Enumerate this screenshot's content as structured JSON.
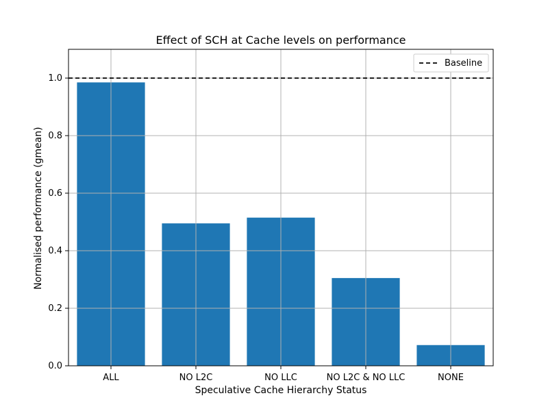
{
  "colors": {
    "bar": "#1f77b4",
    "grid": "#b0b0b0",
    "axis": "#000000",
    "baseline": "#000000",
    "background": "#ffffff"
  },
  "chart_data": {
    "type": "bar",
    "title": "Effect of SCH at Cache levels on performance",
    "xlabel": "Speculative Cache Hierarchy Status",
    "ylabel": "Normalised performance (gmean)",
    "categories": [
      "ALL",
      "NO L2C",
      "NO LLC",
      "NO L2C & NO LLC",
      "NONE"
    ],
    "values": [
      0.985,
      0.495,
      0.515,
      0.305,
      0.072
    ],
    "ylim": [
      0,
      1.1
    ],
    "yticks": [
      0.0,
      0.2,
      0.4,
      0.6,
      0.8,
      1.0
    ],
    "ytick_labels": [
      "0.0",
      "0.2",
      "0.4",
      "0.6",
      "0.8",
      "1.0"
    ],
    "grid": true,
    "baseline": {
      "value": 1.0,
      "label": "Baseline",
      "style": "dashed"
    },
    "legend": {
      "position": "top-right",
      "entries": [
        "Baseline"
      ]
    }
  }
}
